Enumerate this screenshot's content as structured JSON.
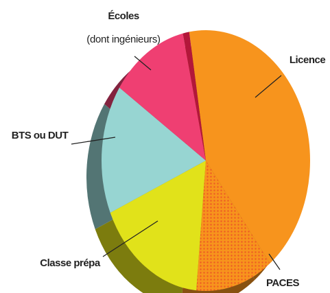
{
  "chart_data": {
    "type": "pie",
    "categories": [
      "Licence",
      "PACES",
      "Classe prépa",
      "BTS ou DUT",
      "Écoles",
      null
    ],
    "label_notes": [
      null,
      null,
      null,
      null,
      "(dont ingénieurs)",
      null
    ],
    "values": [
      42,
      12,
      17,
      16,
      12,
      1
    ],
    "colors": [
      "#f7941d",
      "#f7941d",
      "#e1e21a",
      "#97d5d2",
      "#ef3f72",
      "#b3173a"
    ],
    "patterns": [
      null,
      "dots",
      null,
      null,
      null,
      null
    ],
    "three_d": true
  }
}
